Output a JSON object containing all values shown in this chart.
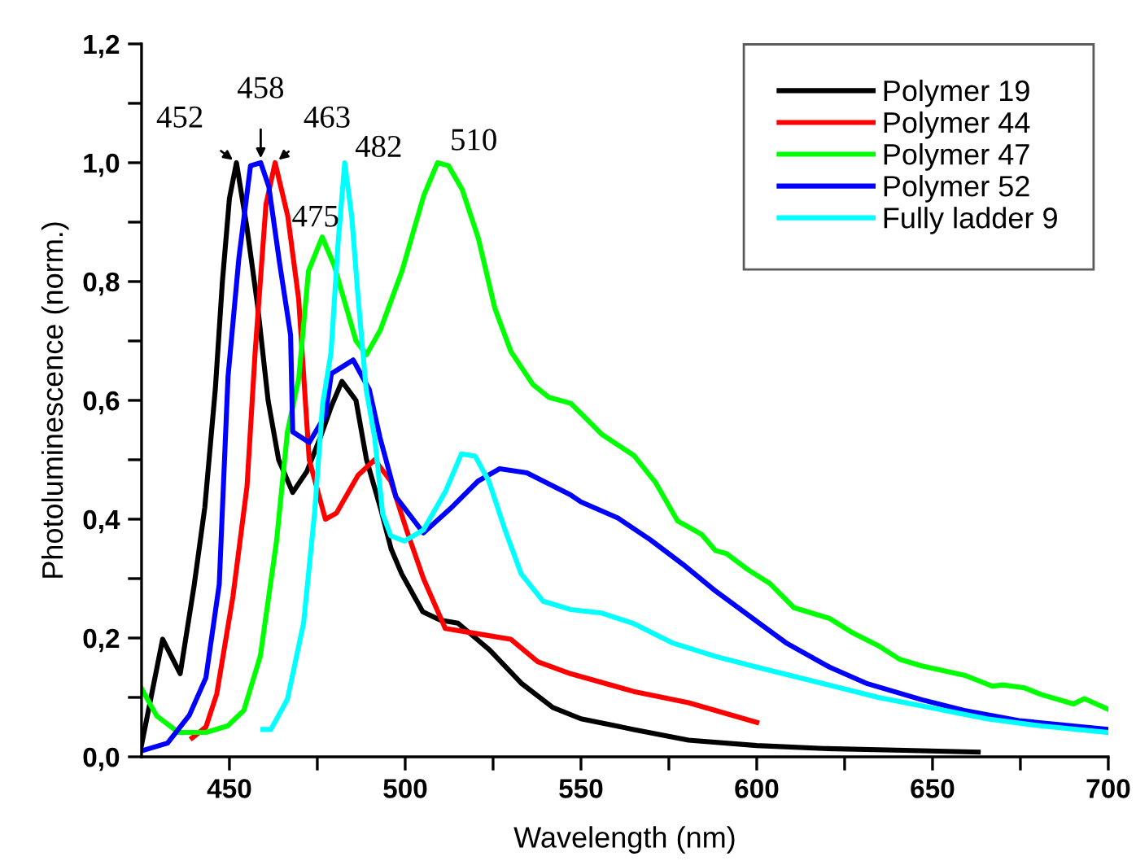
{
  "chart_data": {
    "type": "line",
    "xlabel": "Wavelength (nm)",
    "ylabel": "Photoluminescence (norm.)",
    "xlim": [
      425,
      700
    ],
    "xticks": [
      {
        "value": 450,
        "label": "450"
      },
      {
        "value": 475,
        "label": null
      },
      {
        "value": 500,
        "label": "500"
      },
      {
        "value": 525,
        "label": null
      },
      {
        "value": 550,
        "label": "550"
      },
      {
        "value": 575,
        "label": null
      },
      {
        "value": 600,
        "label": "600"
      },
      {
        "value": 625,
        "label": null
      },
      {
        "value": 650,
        "label": "650"
      },
      {
        "value": 675,
        "label": null
      },
      {
        "value": 700,
        "label": "700"
      }
    ],
    "ylim": [
      0,
      1.2
    ],
    "yticks": [
      {
        "value": 0,
        "label": "0,0"
      },
      {
        "value": 0.1,
        "label": null
      },
      {
        "value": 0.2,
        "label": "0,2"
      },
      {
        "value": 0.3,
        "label": null
      },
      {
        "value": 0.4,
        "label": "0,4"
      },
      {
        "value": 0.5,
        "label": null
      },
      {
        "value": 0.6,
        "label": "0,6"
      },
      {
        "value": 0.7,
        "label": null
      },
      {
        "value": 0.8,
        "label": "0,8"
      },
      {
        "value": 0.9,
        "label": null
      },
      {
        "value": 1.0,
        "label": "1,0"
      },
      {
        "value": 1.1,
        "label": null
      },
      {
        "value": 1.2,
        "label": "1,2"
      }
    ],
    "grid": false,
    "legend": "top right",
    "line_style": "solid",
    "marker": "none",
    "series": [
      {
        "name": "Polymer 19",
        "color": "#000000",
        "x": [
          425,
          431,
          436,
          440,
          443,
          446,
          448,
          450,
          452,
          455,
          458,
          461,
          464,
          468,
          472,
          476,
          479,
          482,
          486,
          489,
          493,
          496,
          499,
          505,
          510,
          515,
          520,
          524,
          533,
          542,
          550,
          565,
          580.6,
          600,
          619,
          642,
          663
        ],
        "values": [
          0.02,
          0.198,
          0.14,
          0.29,
          0.42,
          0.62,
          0.8,
          0.94,
          1.0,
          0.89,
          0.76,
          0.6,
          0.5,
          0.445,
          0.48,
          0.54,
          0.59,
          0.632,
          0.6,
          0.5,
          0.418,
          0.35,
          0.308,
          0.244,
          0.23,
          0.225,
          0.2,
          0.18,
          0.124,
          0.083,
          0.064,
          0.046,
          0.028,
          0.019,
          0.014,
          0.011,
          0.008
        ]
      },
      {
        "name": "Polymer 44",
        "color": "#ff0000",
        "x": [
          439.4,
          443.3,
          446.4,
          451,
          455,
          457.3,
          460.4,
          463,
          466.6,
          469.7,
          472.7,
          477.3,
          480.4,
          486.6,
          491.3,
          495.9,
          500.5,
          505.2,
          511.4,
          520.7,
          530,
          537.7,
          547,
          565,
          580.6,
          600
        ],
        "values": [
          0.032,
          0.05,
          0.106,
          0.27,
          0.455,
          0.68,
          0.93,
          1.0,
          0.91,
          0.77,
          0.5,
          0.4,
          0.41,
          0.474,
          0.5,
          0.464,
          0.38,
          0.3,
          0.216,
          0.207,
          0.198,
          0.16,
          0.14,
          0.11,
          0.091,
          0.058
        ]
      },
      {
        "name": "Polymer 47",
        "color": "#00ff00",
        "x": [
          425,
          429.3,
          435.5,
          443.3,
          449.5,
          454.1,
          458.8,
          463.4,
          466.5,
          469.7,
          472.5,
          476.4,
          479.8,
          486,
          489,
          492.9,
          499.1,
          505.3,
          509.2,
          512.3,
          516.2,
          520.8,
          525.5,
          530.1,
          536.3,
          540.9,
          547.1,
          551.2,
          555.9,
          565.1,
          571.3,
          577.5,
          584.4,
          588.3,
          591.4,
          597.5,
          603.7,
          610.6,
          620.7,
          626.9,
          634.6,
          640.7,
          646.9,
          659.3,
          667,
          670,
          676.2,
          680.9,
          690.1,
          693.2,
          700
        ],
        "values": [
          0.115,
          0.069,
          0.041,
          0.041,
          0.052,
          0.078,
          0.17,
          0.363,
          0.547,
          0.636,
          0.818,
          0.875,
          0.827,
          0.7,
          0.677,
          0.718,
          0.818,
          0.945,
          1.0,
          0.995,
          0.955,
          0.873,
          0.755,
          0.682,
          0.627,
          0.605,
          0.595,
          0.571,
          0.543,
          0.507,
          0.461,
          0.397,
          0.374,
          0.347,
          0.342,
          0.315,
          0.292,
          0.251,
          0.233,
          0.21,
          0.187,
          0.164,
          0.153,
          0.137,
          0.119,
          0.121,
          0.116,
          0.105,
          0.089,
          0.098,
          0.08
        ]
      },
      {
        "name": "Polymer 52",
        "color": "#0000ff",
        "x": [
          425,
          432.4,
          438.6,
          443.3,
          447.1,
          449.6,
          452.7,
          456,
          458.9,
          461.2,
          464.3,
          467.4,
          468,
          472.7,
          477.3,
          479,
          485.2,
          489.8,
          492.8,
          497.4,
          505.2,
          512.9,
          520.7,
          526.9,
          534.6,
          547,
          550,
          560.5,
          569.8,
          579,
          588.3,
          600,
          608.3,
          620.7,
          631.5,
          647,
          659,
          674.6,
          700
        ],
        "values": [
          0.01,
          0.023,
          0.07,
          0.133,
          0.29,
          0.64,
          0.84,
          0.995,
          1.0,
          0.96,
          0.83,
          0.71,
          0.547,
          0.529,
          0.575,
          0.645,
          0.668,
          0.618,
          0.538,
          0.437,
          0.377,
          0.418,
          0.464,
          0.485,
          0.478,
          0.441,
          0.429,
          0.402,
          0.365,
          0.324,
          0.279,
          0.228,
          0.192,
          0.151,
          0.123,
          0.096,
          0.078,
          0.061,
          0.046
        ]
      },
      {
        "name": "Fully ladder 9",
        "color": "#00ffff",
        "x": [
          459.5,
          461.8,
          466.5,
          471.1,
          474.2,
          476.5,
          478.9,
          480.9,
          482.8,
          484.8,
          486.6,
          488.9,
          491.3,
          493.6,
          495.9,
          499.8,
          505.2,
          511.4,
          516,
          519.9,
          523.8,
          528.4,
          533,
          539.2,
          547,
          555.9,
          565.1,
          575.9,
          588.3,
          600,
          619.1,
          634.6,
          650,
          665.4,
          680.9,
          700
        ],
        "values": [
          0.046,
          0.046,
          0.097,
          0.225,
          0.409,
          0.593,
          0.68,
          0.864,
          1.0,
          0.909,
          0.773,
          0.618,
          0.538,
          0.409,
          0.372,
          0.363,
          0.382,
          0.446,
          0.51,
          0.506,
          0.464,
          0.382,
          0.308,
          0.262,
          0.248,
          0.242,
          0.224,
          0.192,
          0.169,
          0.151,
          0.123,
          0.1,
          0.082,
          0.064,
          0.052,
          0.041
        ]
      }
    ],
    "annotations": [
      {
        "text": "452",
        "x": 452,
        "y": 1.0
      },
      {
        "text": "458",
        "x": 458.9,
        "y": 1.0
      },
      {
        "text": "463",
        "x": 463,
        "y": 1.0
      },
      {
        "text": "475",
        "x": 476.4,
        "y": 0.875
      },
      {
        "text": "482",
        "x": 482.8,
        "y": 1.0
      },
      {
        "text": "510",
        "x": 509.2,
        "y": 1.0
      }
    ]
  }
}
